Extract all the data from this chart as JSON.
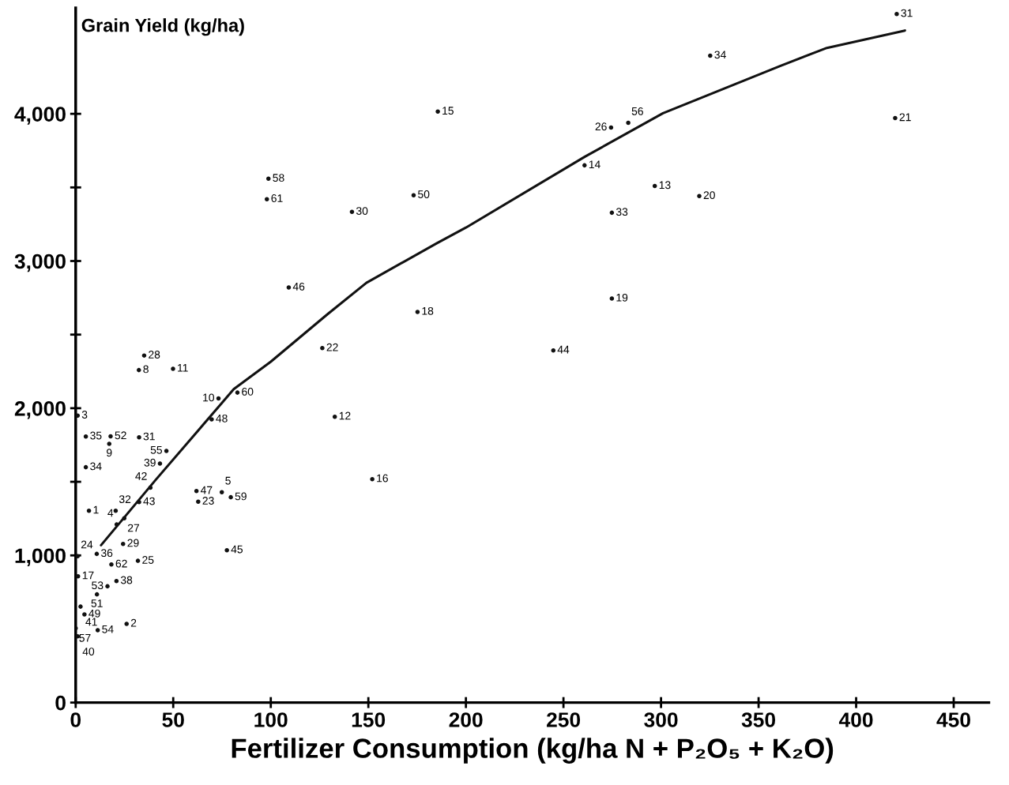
{
  "chart_data": {
    "type": "scatter",
    "xlabel": "Fertilizer Consumption (kg/ha N + P₂O₅ + K₂O)",
    "ylabel": "Grain Yield (kg/ha)",
    "xlim": [
      0,
      468
    ],
    "ylim": [
      0,
      4720
    ],
    "xticks": [
      0,
      50,
      100,
      150,
      200,
      250,
      300,
      350,
      400,
      450
    ],
    "yticks": [
      {
        "value": 0,
        "label": "0"
      },
      {
        "value": 1000,
        "label": "1,000"
      },
      {
        "value": 1500,
        "label": null
      },
      {
        "value": 2000,
        "label": "2,000"
      },
      {
        "value": 2500,
        "label": null
      },
      {
        "value": 3000,
        "label": "3,000"
      },
      {
        "value": 3500,
        "label": null
      },
      {
        "value": 4000,
        "label": "4,000"
      }
    ],
    "grid": false,
    "legend": false,
    "series": [
      {
        "marker": "circle",
        "color": "#111111",
        "x": [
          35.1,
          32.4,
          49.9,
          73.2,
          82.9,
          69.7,
          1,
          5.2,
          17.9,
          17.2,
          32.5,
          46.5,
          43.2,
          5.2,
          38.3,
          32.5,
          61.9,
          62.8,
          74.9,
          79.5,
          6.8,
          20.5,
          24.9,
          21,
          24.3,
          10.8,
          1,
          18.3,
          31.9,
          1.2,
          20.9,
          16.3,
          10.9,
          2.5,
          4.5,
          26.1,
          11.3,
          0,
          1,
          77.5,
          126.4,
          132.8,
          152,
          109.2,
          175.2,
          98.8,
          98,
          141.6,
          173.2,
          185.6,
          260.8,
          274.4,
          283.2,
          296.8,
          274.8,
          319.6,
          274.8,
          244.8,
          325.2,
          420.8,
          420
        ],
        "values": [
          2358,
          2259,
          2268,
          2066,
          2106,
          1924,
          1950,
          1808,
          1809,
          1758,
          1802,
          1710,
          1624,
          1599,
          1460,
          1362,
          1437,
          1365,
          1429,
          1395,
          1303,
          1303,
          1252,
          1210,
          1078,
          1010,
          995,
          938,
          963,
          858,
          826,
          790,
          735,
          652,
          599,
          535,
          492,
          505,
          450,
          1035,
          2408,
          1942,
          1518,
          2820,
          2654,
          3559,
          3420,
          3334,
          3447,
          4015,
          3650,
          3907,
          3939,
          3510,
          3328,
          3441,
          2745,
          2392,
          4395,
          4678,
          3971
        ]
      },
      {
        "type": "line",
        "color": "#111111",
        "line_style": "solid",
        "x": [
          13,
          41,
          81,
          100,
          129,
          149,
          185,
          200,
          261,
          301,
          361,
          385,
          425
        ],
        "values": [
          1069,
          1513,
          2129,
          2316,
          2638,
          2852,
          3120,
          3227,
          3709,
          4004,
          4325,
          4448,
          4566
        ]
      }
    ],
    "annotations": [
      {
        "text": "28",
        "x": 35.1,
        "y": 2358
      },
      {
        "text": "8",
        "x": 32.4,
        "y": 2259
      },
      {
        "text": "11",
        "x": 49.9,
        "y": 2268
      },
      {
        "text": "10",
        "x": 73.2,
        "y": 2066
      },
      {
        "text": "60",
        "x": 82.9,
        "y": 2106
      },
      {
        "text": "48",
        "x": 69.7,
        "y": 1924
      },
      {
        "text": "3",
        "x": 1,
        "y": 1950
      },
      {
        "text": "35",
        "x": 5.2,
        "y": 1808
      },
      {
        "text": "52",
        "x": 17.9,
        "y": 1809
      },
      {
        "text": "9",
        "x": 17.2,
        "y": 1758
      },
      {
        "text": "31",
        "x": 32.5,
        "y": 1802
      },
      {
        "text": "55",
        "x": 46.5,
        "y": 1710
      },
      {
        "text": "39",
        "x": 43.2,
        "y": 1624
      },
      {
        "text": "34",
        "x": 5.2,
        "y": 1599
      },
      {
        "text": "42",
        "x": 38.3,
        "y": 1460
      },
      {
        "text": "43",
        "x": 32.5,
        "y": 1362
      },
      {
        "text": "47",
        "x": 61.9,
        "y": 1437
      },
      {
        "text": "23",
        "x": 62.8,
        "y": 1365
      },
      {
        "text": "5",
        "x": 74.9,
        "y": 1429
      },
      {
        "text": "59",
        "x": 79.5,
        "y": 1395
      },
      {
        "text": "1",
        "x": 6.8,
        "y": 1303
      },
      {
        "text": "32",
        "x": 20.5,
        "y": 1303
      },
      {
        "text": "27",
        "x": 24.9,
        "y": 1252
      },
      {
        "text": "4",
        "x": 21,
        "y": 1210
      },
      {
        "text": "29",
        "x": 24.3,
        "y": 1078
      },
      {
        "text": "36",
        "x": 10.8,
        "y": 1010
      },
      {
        "text": "24",
        "x": 1,
        "y": 995
      },
      {
        "text": "62",
        "x": 18.3,
        "y": 938
      },
      {
        "text": "25",
        "x": 31.9,
        "y": 963
      },
      {
        "text": "17",
        "x": 1.2,
        "y": 858
      },
      {
        "text": "38",
        "x": 20.9,
        "y": 826
      },
      {
        "text": "53",
        "x": 16.3,
        "y": 790
      },
      {
        "text": "51",
        "x": 10.9,
        "y": 735
      },
      {
        "text": "41",
        "x": 2.5,
        "y": 652
      },
      {
        "text": "49",
        "x": 4.5,
        "y": 599
      },
      {
        "text": "2",
        "x": 26.1,
        "y": 535
      },
      {
        "text": "54",
        "x": 11.3,
        "y": 492
      },
      {
        "text": "57",
        "x": 0,
        "y": 505
      },
      {
        "text": "40",
        "x": 1,
        "y": 450
      },
      {
        "text": "45",
        "x": 77.5,
        "y": 1035
      },
      {
        "text": "22",
        "x": 126.4,
        "y": 2408
      },
      {
        "text": "12",
        "x": 132.8,
        "y": 1942
      },
      {
        "text": "16",
        "x": 152,
        "y": 1518
      },
      {
        "text": "46",
        "x": 109.2,
        "y": 2820
      },
      {
        "text": "18",
        "x": 175.2,
        "y": 2654
      },
      {
        "text": "58",
        "x": 98.8,
        "y": 3559
      },
      {
        "text": "61",
        "x": 98,
        "y": 3420
      },
      {
        "text": "30",
        "x": 141.6,
        "y": 3334
      },
      {
        "text": "50",
        "x": 173.2,
        "y": 3447
      },
      {
        "text": "15",
        "x": 185.6,
        "y": 4015
      },
      {
        "text": "14",
        "x": 260.8,
        "y": 3650
      },
      {
        "text": "26",
        "x": 274.4,
        "y": 3907
      },
      {
        "text": "56",
        "x": 283.2,
        "y": 3939
      },
      {
        "text": "13",
        "x": 296.8,
        "y": 3510
      },
      {
        "text": "33",
        "x": 274.8,
        "y": 3328
      },
      {
        "text": "20",
        "x": 319.6,
        "y": 3441
      },
      {
        "text": "19",
        "x": 274.8,
        "y": 2745
      },
      {
        "text": "44",
        "x": 244.8,
        "y": 2392
      },
      {
        "text": "34",
        "x": 325.2,
        "y": 4395
      },
      {
        "text": "31",
        "x": 420.8,
        "y": 4678
      },
      {
        "text": "21",
        "x": 420,
        "y": 3971
      }
    ]
  }
}
